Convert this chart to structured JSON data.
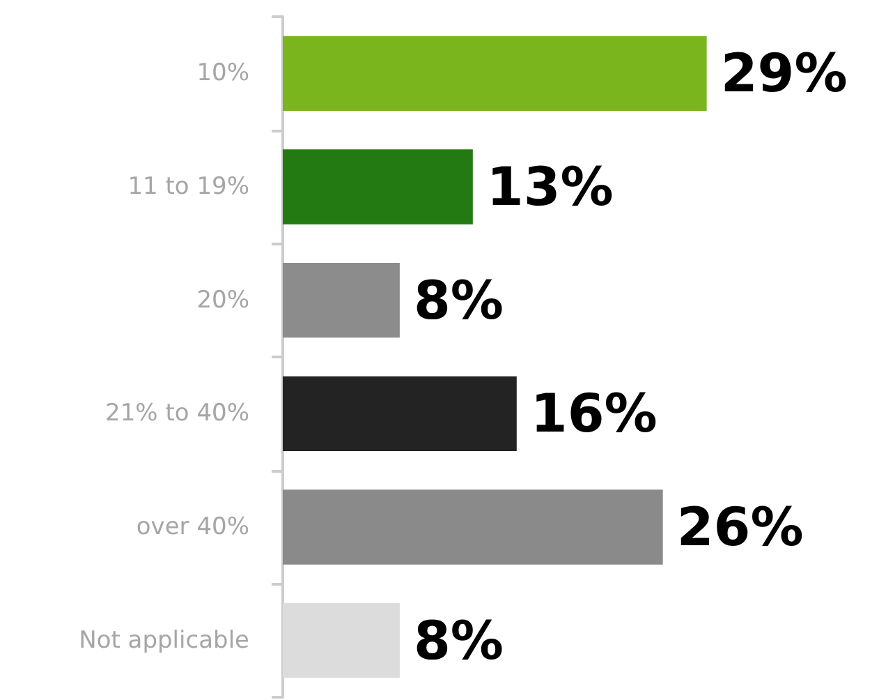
{
  "chart_data": {
    "type": "bar",
    "orientation": "horizontal",
    "categories": [
      "10%",
      "11 to 19%",
      "20%",
      "21% to 40%",
      "over 40%",
      "Not applicable"
    ],
    "values": [
      29,
      13,
      8,
      16,
      26,
      8
    ],
    "colors": [
      "#7ab51d",
      "#237a12",
      "#8c8c8c",
      "#232323",
      "#8a8a8a",
      "#dcdcdc"
    ],
    "value_labels": [
      "29%",
      "13%",
      "8%",
      "16%",
      "26%",
      "8%"
    ]
  }
}
